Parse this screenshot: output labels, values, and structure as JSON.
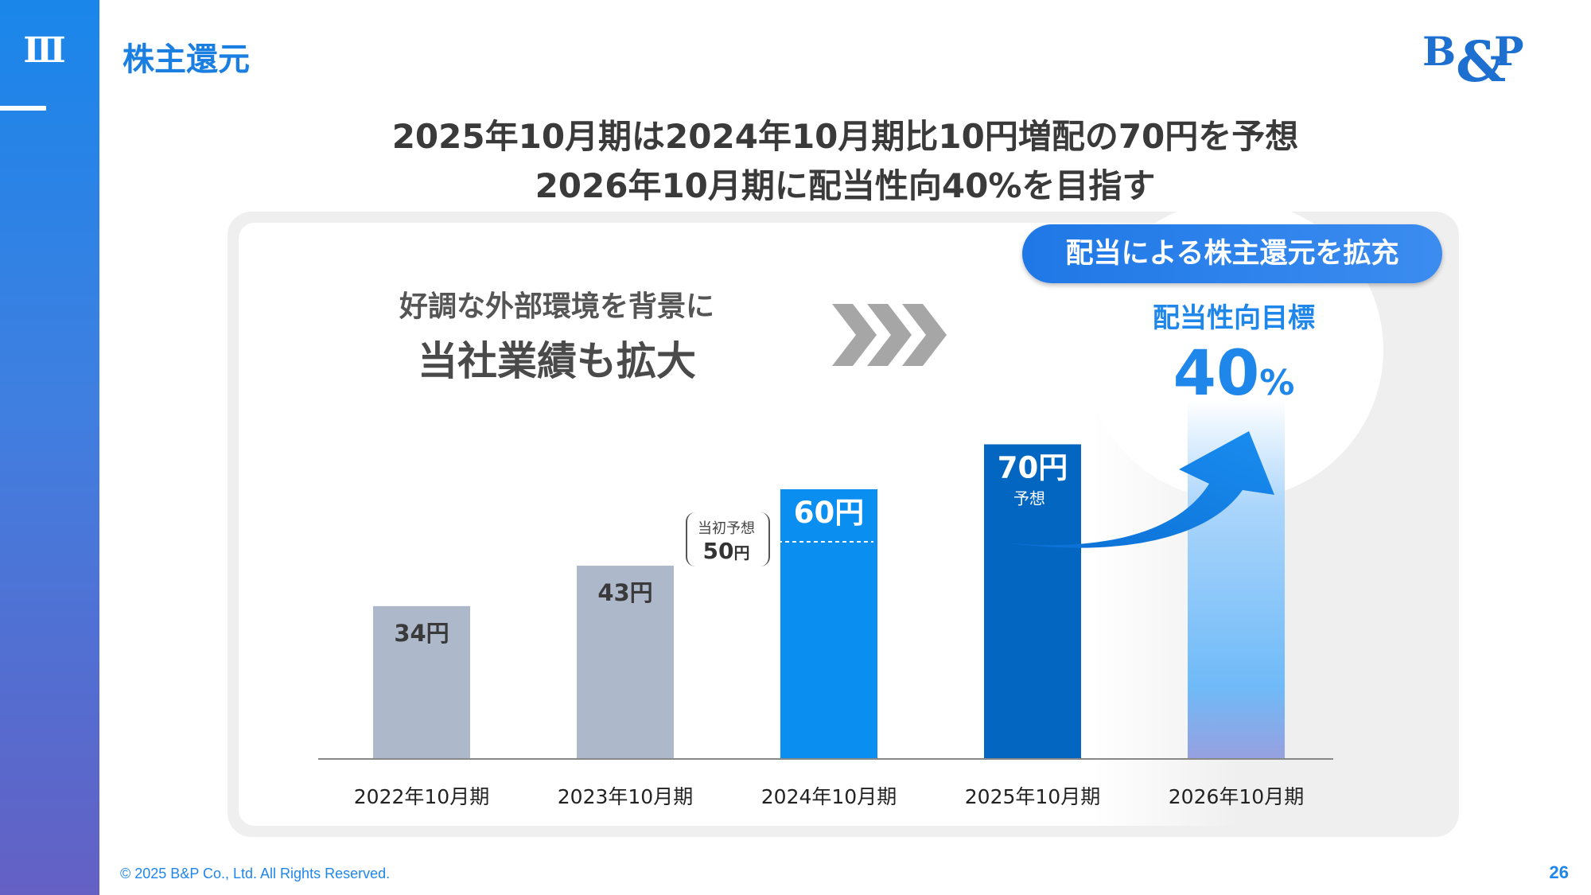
{
  "section": {
    "number": "Ⅲ",
    "title": "株主還元"
  },
  "logo": {
    "text": "B&P"
  },
  "headline": {
    "line1": "2025年10月期は2024年10月期比10円増配の70円を予想",
    "line2": "2026年10月期に配当性向40%を目指す"
  },
  "left_message": {
    "line1": "好調な外部環境を背景に",
    "line2": "当社業績も拡大"
  },
  "pill_label": "配当による株主還元を拡充",
  "target": {
    "label": "配当性向目標",
    "value": "40",
    "unit": "%"
  },
  "original_forecast": {
    "label": "当初予想",
    "value": "50",
    "unit": "円"
  },
  "chart_data": {
    "type": "bar",
    "categories": [
      "2022年10月期",
      "2023年10月期",
      "2024年10月期",
      "2025年10月期",
      "2026年10月期"
    ],
    "values": [
      34,
      43,
      60,
      70,
      null
    ],
    "labels": [
      "34円",
      "43円",
      "60円",
      "70円",
      ""
    ],
    "sublabels": [
      "",
      "",
      "",
      "予想",
      ""
    ],
    "original_forecast_2024": 50,
    "colors": [
      "#adb8ca",
      "#adb8ca",
      "#0a8ef0",
      "#0366c0",
      "gradient-light-blue"
    ],
    "target_bar_label": "40%"
  },
  "footer": {
    "copyright": "© 2025 B&P Co., Ltd. All Rights Reserved.",
    "page": "26"
  }
}
